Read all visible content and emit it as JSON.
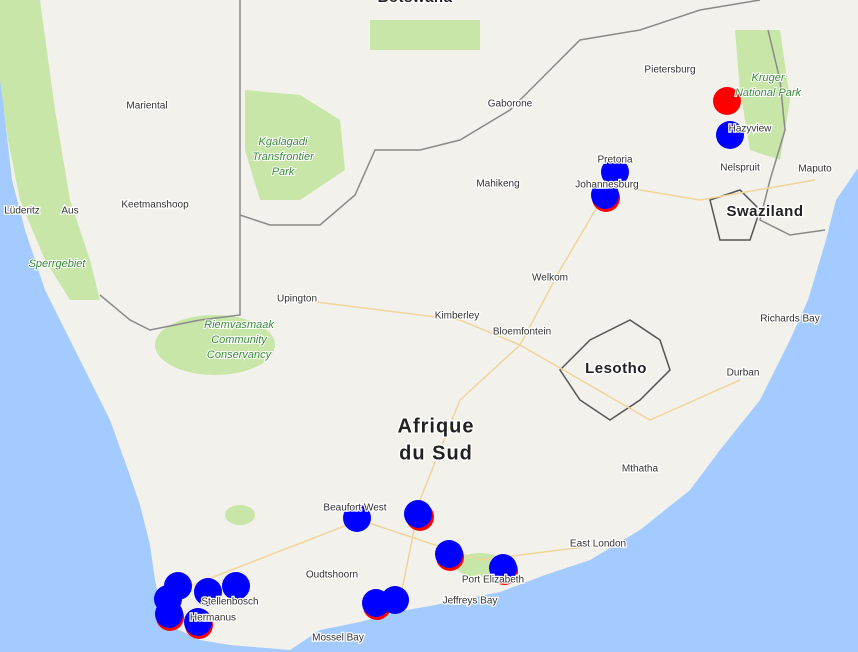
{
  "country": {
    "lines": [
      "Afrique",
      "du Sud"
    ]
  },
  "neighbours": [
    "Botswana",
    "Swaziland",
    "Lesotho"
  ],
  "places": [
    "Gaborone",
    "Pietersburg",
    "Pretoria",
    "Johannesburg",
    "Mahikeng",
    "Nelspruit",
    "Maputo",
    "Mariental",
    "Lüderitz",
    "Aus",
    "Keetmanshoop",
    "Welkom",
    "Upington",
    "Kimberley",
    "Bloemfontein",
    "Richards Bay",
    "Durban",
    "Mthatha",
    "Beaufort West",
    "East London",
    "Oudtshoorn",
    "Port Elizabeth",
    "Jeffreys Bay",
    "Mossel Bay",
    "Stellenbosch",
    "Hermanus",
    "Hazyview"
  ],
  "parks": [
    {
      "lines": [
        "Kgalagadi",
        "Transfrontier",
        "Park"
      ]
    },
    {
      "lines": [
        "Riemvasmaak",
        "Community",
        "Conservancy"
      ]
    },
    {
      "lines": [
        "Sperrgebiet"
      ]
    },
    {
      "lines": [
        "Kruger",
        "National Park"
      ]
    }
  ]
}
